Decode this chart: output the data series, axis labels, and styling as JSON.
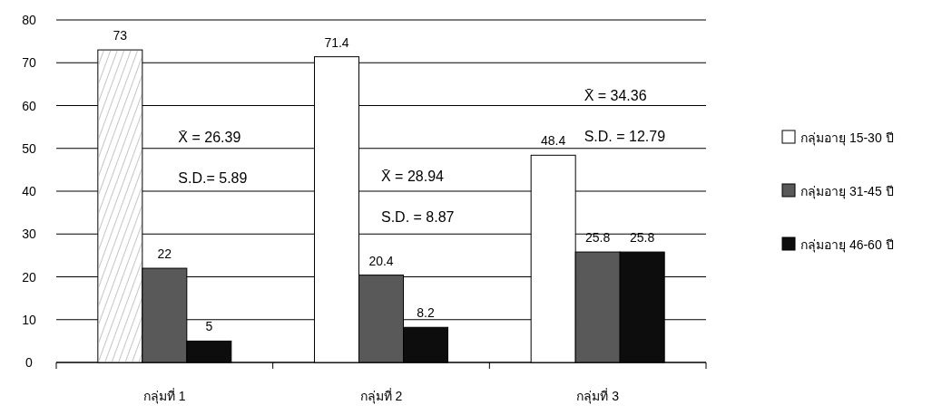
{
  "chart_data": {
    "type": "bar",
    "categories": [
      "กลุ่มที่ 1",
      "กลุ่มที่ 2",
      "กลุ่มที่ 3"
    ],
    "series": [
      {
        "name": "กลุ่มอายุ 15-30 ปี",
        "color": "#ffffff",
        "values": [
          73,
          71.4,
          48.4
        ]
      },
      {
        "name": "กลุ่มอายุ 31-45 ปี",
        "color": "#595959",
        "values": [
          22,
          20.4,
          25.8
        ]
      },
      {
        "name": "กลุ่มอายุ 46-60 ปี",
        "color": "#0d0d0d",
        "values": [
          5,
          8.2,
          25.8
        ]
      }
    ],
    "ylim": [
      0,
      80
    ],
    "yticks": [
      0,
      10,
      20,
      30,
      40,
      50,
      60,
      70,
      80
    ],
    "grid": "y",
    "legend": "right",
    "data_labels": true,
    "annotations": [
      "X̄ = 26.39",
      "S.D.= 5.89",
      "X̄ = 28.94",
      "S.D. = 8.87",
      "X̄ = 34.36",
      "S.D. = 12.79"
    ]
  }
}
